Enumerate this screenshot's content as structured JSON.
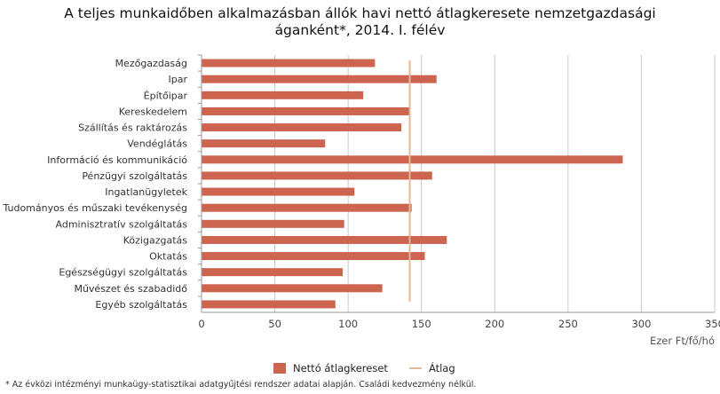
{
  "title_line1": "A teljes munkaidőben alkalmazásban állók havi nettó átlagkeresete nemzetgazdasági",
  "title_line2": "áganként*, 2014. I. félév",
  "footnote": "* Az évközi intézményi munkaügy-statisztikai adatgyűjtési rendszer adatai alapján. Családi kedvezmény nélkül.",
  "colors": {
    "bar": "#cd6450",
    "avg_line": "#e3b89a",
    "grid": "#c8c8c8",
    "axis": "#999999"
  },
  "chart_data": {
    "type": "bar",
    "orientation": "horizontal",
    "categories": [
      "Mezőgazdaság",
      "Ipar",
      "Építőipar",
      "Kereskedelem",
      "Szállítás és raktározás",
      "Vendéglátás",
      "Információ és kommunikáció",
      "Pénzügyi szolgáltatás",
      "Ingatlanügyletek",
      "Tudományos és műszaki tevékenység",
      "Adminisztratív szolgáltatás",
      "Közigazgatás",
      "Oktatás",
      "Egészségügyi szolgáltatás",
      "Művészet és szabadidő",
      "Egyéb szolgáltatás"
    ],
    "series": [
      {
        "name": "Nettó átlagkereset",
        "values": [
          118,
          160,
          110,
          142,
          136,
          84,
          287,
          157,
          104,
          143,
          97,
          167,
          152,
          96,
          123,
          91
        ]
      }
    ],
    "average": {
      "name": "Átlag",
      "value": 142
    },
    "xlabel": "Ezer Ft/fő/hó",
    "xlim": [
      0,
      350
    ],
    "xticks": [
      0,
      50,
      100,
      150,
      200,
      250,
      300,
      350
    ],
    "grid": true,
    "legend_position": "bottom"
  }
}
